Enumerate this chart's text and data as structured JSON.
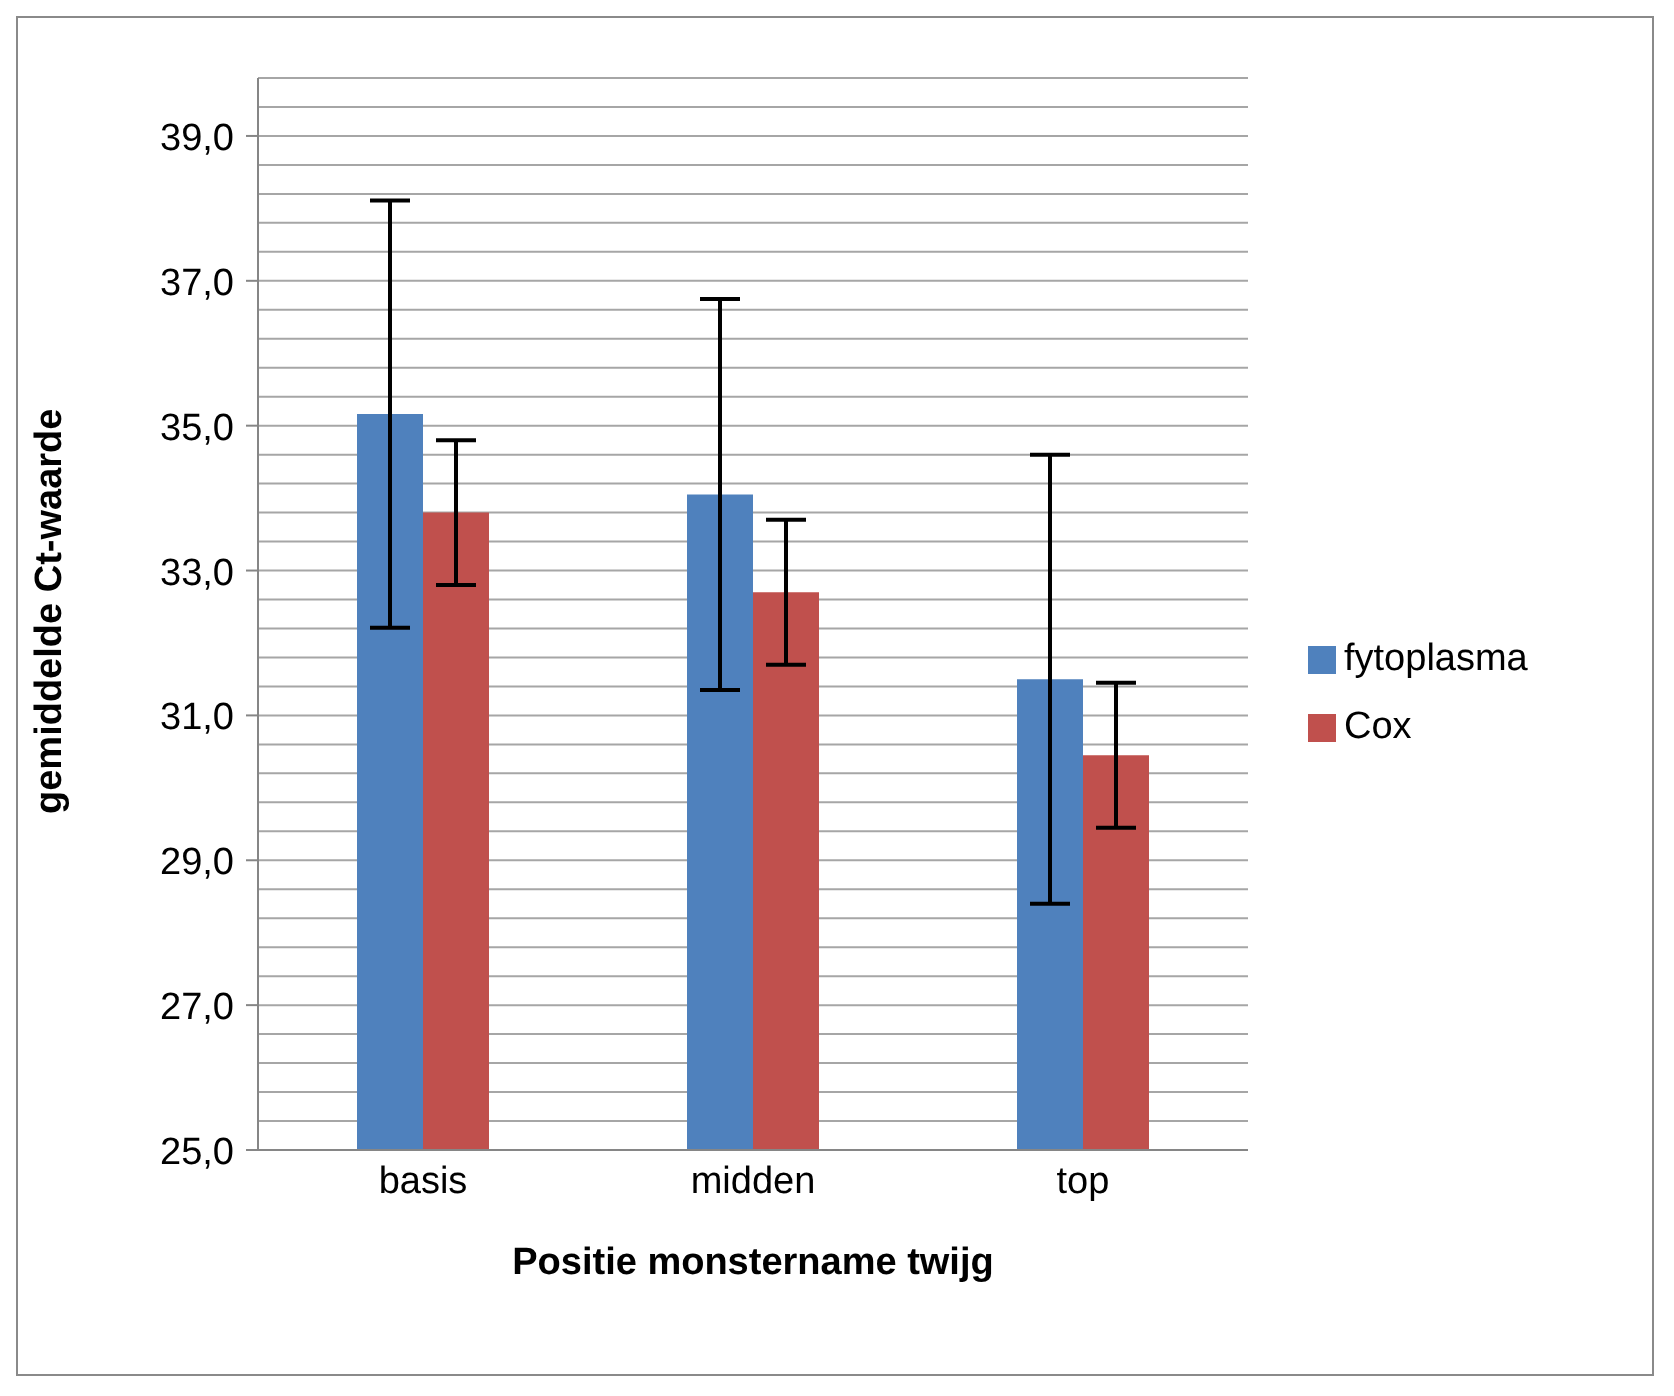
{
  "chart_data": {
    "type": "bar",
    "xlabel": "Positie monstername twijg",
    "ylabel": "gemiddelde Ct-waarde",
    "categories": [
      "basis",
      "midden",
      "top"
    ],
    "series": [
      {
        "name": "fytoplasma",
        "color": "#4f81bd",
        "values": [
          35.16,
          34.05,
          31.5
        ],
        "errors": [
          2.95,
          2.7,
          3.1
        ]
      },
      {
        "name": "Cox",
        "color": "#c0504d",
        "values": [
          33.8,
          32.7,
          30.45
        ],
        "errors": [
          1.0,
          1.0,
          1.0
        ]
      }
    ],
    "ylim": [
      25,
      39.8
    ],
    "yticks": [
      {
        "value": 25,
        "label": "25,0"
      },
      {
        "value": 25.4,
        "label": null
      },
      {
        "value": 25.8,
        "label": null
      },
      {
        "value": 26.2,
        "label": null
      },
      {
        "value": 26.6,
        "label": null
      },
      {
        "value": 27,
        "label": "27,0"
      },
      {
        "value": 27.4,
        "label": null
      },
      {
        "value": 27.8,
        "label": null
      },
      {
        "value": 28.2,
        "label": null
      },
      {
        "value": 28.6,
        "label": null
      },
      {
        "value": 29,
        "label": "29,0"
      },
      {
        "value": 29.4,
        "label": null
      },
      {
        "value": 29.8,
        "label": null
      },
      {
        "value": 30.2,
        "label": null
      },
      {
        "value": 30.6,
        "label": null
      },
      {
        "value": 31,
        "label": "31,0"
      },
      {
        "value": 31.4,
        "label": null
      },
      {
        "value": 31.8,
        "label": null
      },
      {
        "value": 32.2,
        "label": null
      },
      {
        "value": 32.6,
        "label": null
      },
      {
        "value": 33,
        "label": "33,0"
      },
      {
        "value": 33.4,
        "label": null
      },
      {
        "value": 33.8,
        "label": null
      },
      {
        "value": 34.2,
        "label": null
      },
      {
        "value": 34.6,
        "label": null
      },
      {
        "value": 35,
        "label": "35,0"
      },
      {
        "value": 35.4,
        "label": null
      },
      {
        "value": 35.8,
        "label": null
      },
      {
        "value": 36.2,
        "label": null
      },
      {
        "value": 36.6,
        "label": null
      },
      {
        "value": 37,
        "label": "37,0"
      },
      {
        "value": 37.4,
        "label": null
      },
      {
        "value": 37.8,
        "label": null
      },
      {
        "value": 38.2,
        "label": null
      },
      {
        "value": 38.6,
        "label": null
      },
      {
        "value": 39,
        "label": "39,0"
      },
      {
        "value": 39.4,
        "label": null
      },
      {
        "value": 39.8,
        "label": null
      }
    ],
    "grid": "y",
    "legend": "right"
  }
}
